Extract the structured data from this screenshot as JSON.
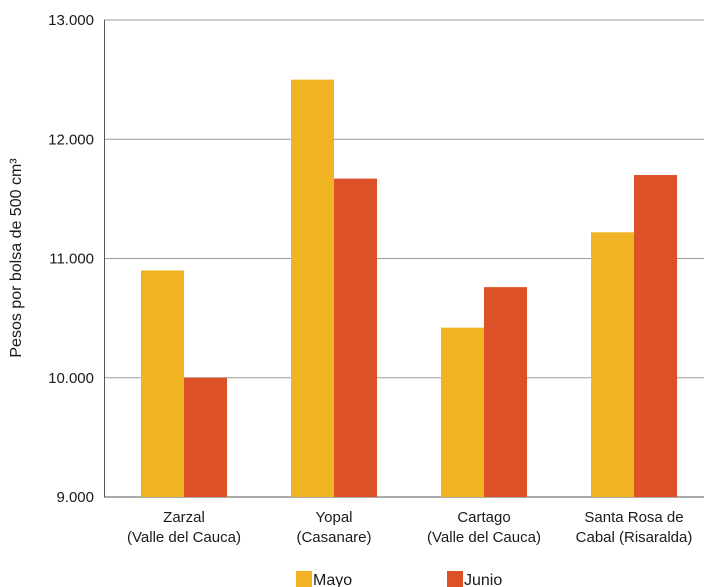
{
  "chart_data": {
    "type": "bar",
    "categories": [
      [
        "Zarzal",
        "(Valle del Cauca)"
      ],
      [
        "Yopal",
        "(Casanare)"
      ],
      [
        "Cartago",
        "(Valle del Cauca)"
      ],
      [
        "Santa Rosa de",
        "Cabal (Risaralda)"
      ]
    ],
    "series": [
      {
        "name": "Mayo",
        "color": "#F0B323",
        "values": [
          10900,
          12500,
          10420,
          11220
        ]
      },
      {
        "name": "Junio",
        "color": "#DD5128",
        "values": [
          10000,
          11670,
          10760,
          11700
        ]
      }
    ],
    "ylabel": "Pesos por bolsa de 500 cm³",
    "ylim": [
      9000,
      13000
    ],
    "yticks": [
      9000,
      10000,
      11000,
      12000,
      13000
    ],
    "ytick_labels": [
      "9.000",
      "10.000",
      "11.000",
      "12.000",
      "13.000"
    ],
    "grid": true,
    "legend_position": "bottom"
  }
}
